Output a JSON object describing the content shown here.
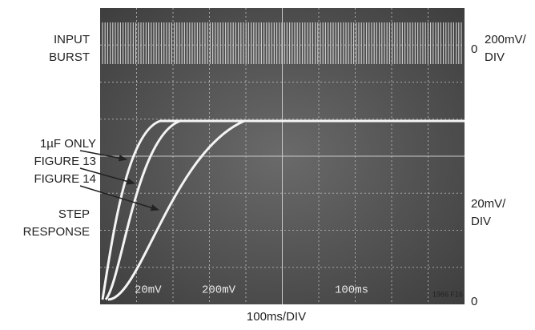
{
  "input_label": [
    "INPUT",
    "BURST"
  ],
  "top_scale": {
    "zero": "0",
    "label": [
      "200mV/",
      "DIV"
    ]
  },
  "trace_labels": [
    "1µF ONLY",
    "FIGURE 13",
    "FIGURE 14"
  ],
  "step_label": [
    "STEP",
    "RESPONSE"
  ],
  "bottom_scale": {
    "label": [
      "20mV/",
      "DIV"
    ],
    "zero": "0"
  },
  "screen_readouts": [
    "20mV",
    "200mV",
    "100ms"
  ],
  "x_scale": "100ms/DIV",
  "figure_id": "1966 F16"
}
